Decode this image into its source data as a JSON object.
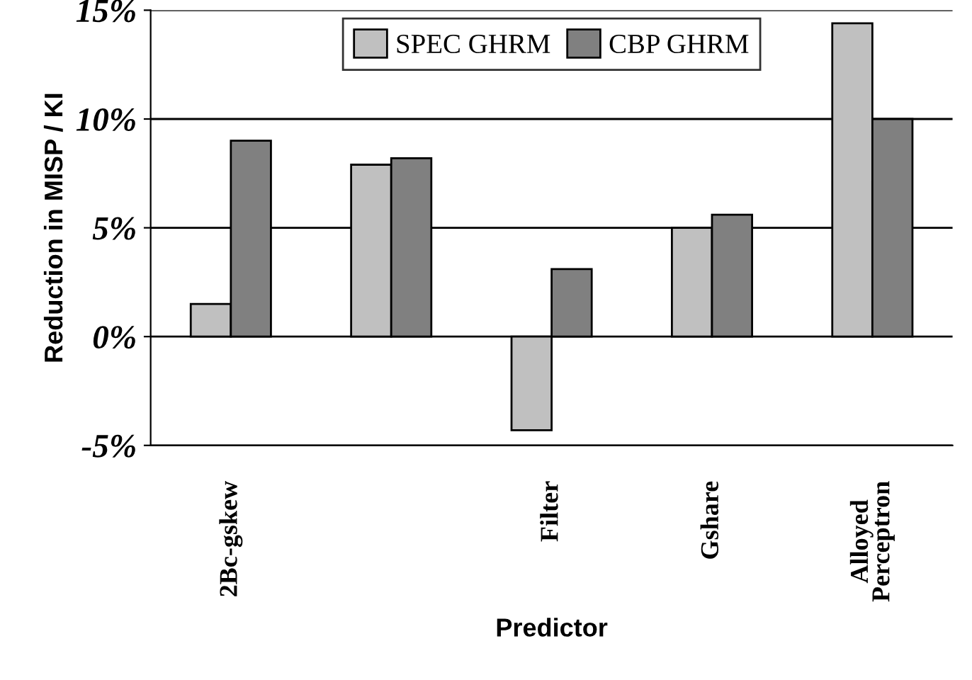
{
  "chart_data": {
    "type": "bar",
    "xlabel": "Predictor",
    "ylabel": "Reduction in MISP / KI",
    "categories": [
      "2Bc-gskew",
      null,
      "Filter",
      "Gshare",
      "Alloyed\nPerceptron"
    ],
    "series": [
      {
        "name": "SPEC GHRM",
        "color": "#c0c0c0",
        "values": [
          1.5,
          7.9,
          -4.3,
          5.0,
          14.4
        ]
      },
      {
        "name": "CBP GHRM",
        "color": "#808080",
        "values": [
          9.0,
          8.2,
          3.1,
          5.6,
          10.0
        ]
      }
    ],
    "ylim": [
      -5,
      15
    ],
    "yticks": [
      {
        "value": -5,
        "label": "-5%"
      },
      {
        "value": 0,
        "label": "0%"
      },
      {
        "value": 5,
        "label": "5%"
      },
      {
        "value": 10,
        "label": "10%"
      },
      {
        "value": 15,
        "label": "15%"
      }
    ],
    "grid": "y",
    "legend": "top"
  }
}
